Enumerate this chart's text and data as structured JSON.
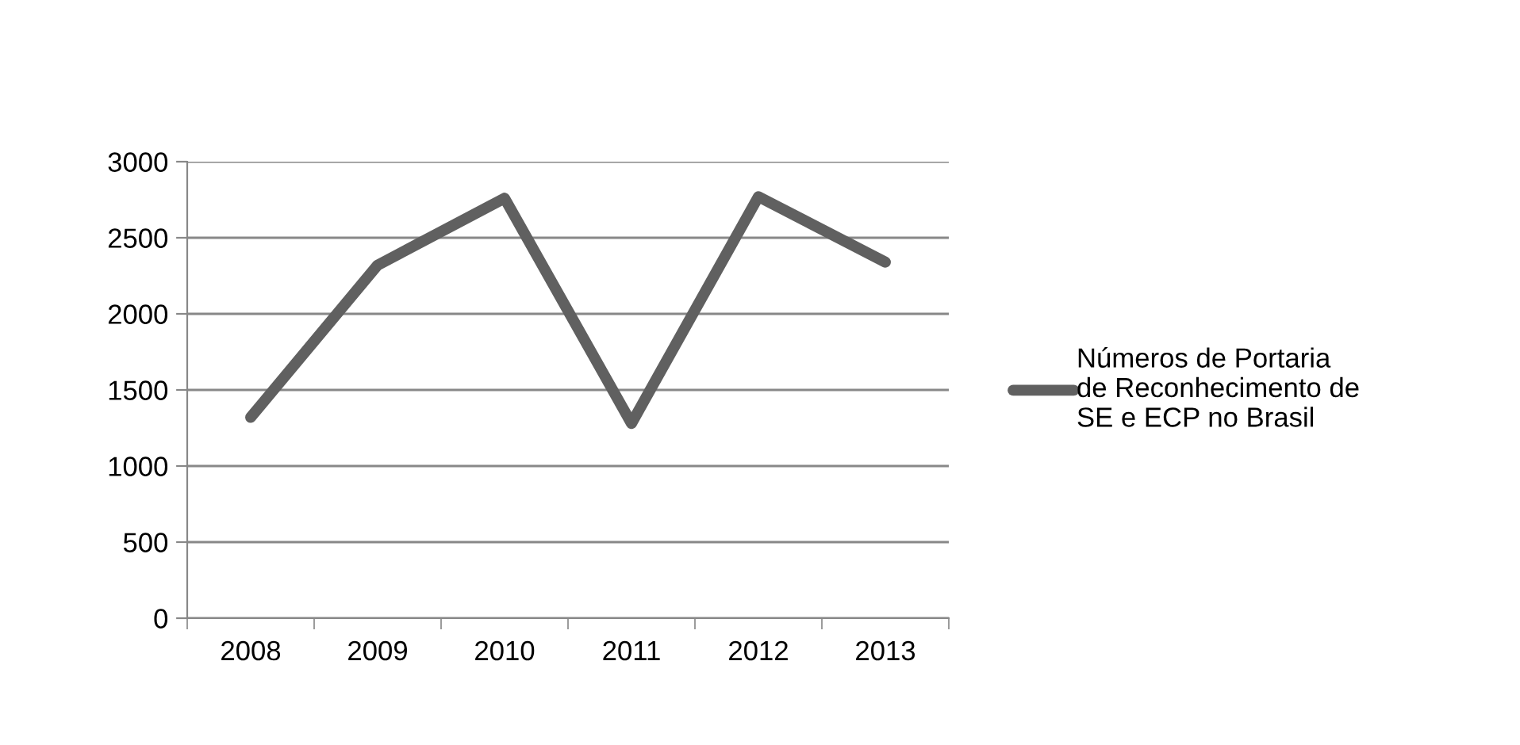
{
  "chart_data": {
    "type": "line",
    "categories": [
      "2008",
      "2009",
      "2010",
      "2011",
      "2012",
      "2013"
    ],
    "series": [
      {
        "name": "Números de Portaria\nde Reconhecimento de\nSE e ECP no Brasil",
        "color": "#606060",
        "values": [
          1320,
          2320,
          2760,
          1280,
          2770,
          2340
        ]
      }
    ],
    "ylim": [
      0,
      3000
    ],
    "yticks": [
      0,
      500,
      1000,
      1500,
      2000,
      2500,
      3000
    ],
    "grid": "y",
    "legend": "right",
    "marker": "none",
    "line_style": "solid"
  }
}
